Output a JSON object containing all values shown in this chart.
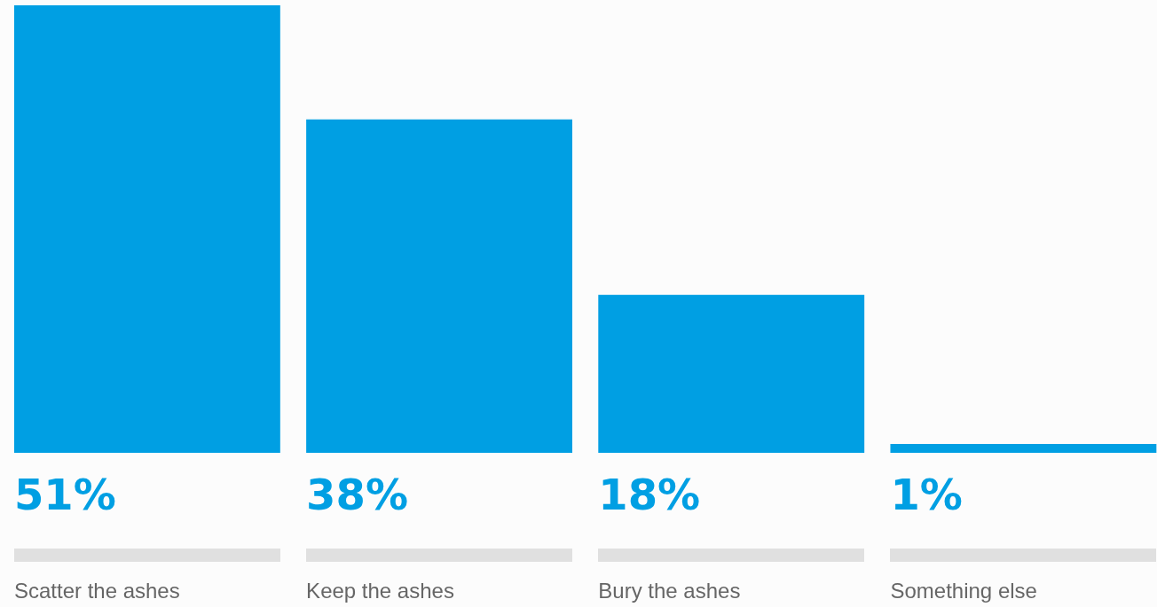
{
  "chart_data": {
    "type": "bar",
    "categories": [
      "Scatter the ashes",
      "Keep the ashes",
      "Bury the ashes",
      "Something else"
    ],
    "values": [
      51,
      38,
      18,
      1
    ],
    "color": "#009fe3",
    "value_labels": [
      "51%",
      "38%",
      "18%",
      "1%"
    ]
  }
}
